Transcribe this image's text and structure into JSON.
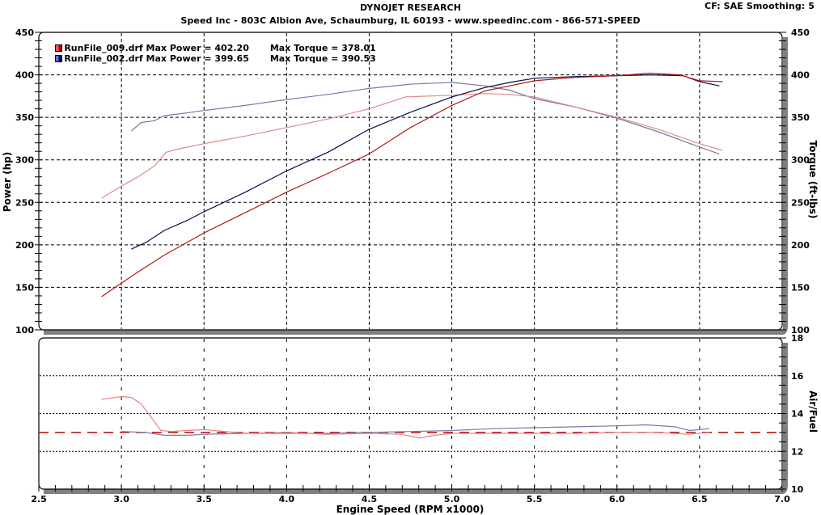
{
  "header": {
    "title": "DYNOJET RESEARCH",
    "subtitle": "Speed Inc - 803C Albion Ave, Schaumburg, IL 60193 - www.speedinc.com - 866-571-SPEED",
    "cf_info": "CF: SAE  Smoothing: 5"
  },
  "legend": [
    {
      "file": "RunFile_009.drf",
      "power_label": "Max Power =",
      "power_value": "402.20",
      "torque_label": "Max Torque =",
      "torque_value": "378.01",
      "color": "#e02020",
      "swatch_dark": "#b00000"
    },
    {
      "file": "RunFile_002.drf",
      "power_label": "Max Power =",
      "power_value": "399.65",
      "torque_label": "Max Torque =",
      "torque_value": "390.53",
      "color": "#3a3aa0",
      "swatch_dark": "#000060"
    }
  ],
  "axes": {
    "left_label": "Power (hp)",
    "right_label_top": "Torque (ft-lbs)",
    "right_label_bottom": "Air/Fuel",
    "x_label": "Engine Speed (RPM x1000)"
  },
  "colors": {
    "power_009": "#b01818",
    "torque_009": "#e08a8a",
    "power_002": "#0a0a50",
    "torque_002": "#7a7aa8",
    "afr_009": "#e88080",
    "afr_002": "#7a7aa8",
    "afr_target": "#c00000",
    "frame_shadow": "#808080"
  },
  "chart_data": [
    {
      "type": "line",
      "title": "Power / Torque vs Engine Speed",
      "xlabel": "Engine Speed (RPM x1000)",
      "ylabel": "Power (hp)",
      "ylabel_right": "Torque (ft-lbs)",
      "xlim": [
        2.5,
        7.0
      ],
      "ylim": [
        100,
        450
      ],
      "x_ticks": [
        "2.5",
        "3.0",
        "3.5",
        "4.0",
        "4.5",
        "5.0",
        "5.5",
        "6.0",
        "6.5",
        "7.0"
      ],
      "y_ticks": [
        "100",
        "150",
        "200",
        "250",
        "300",
        "350",
        "400",
        "450"
      ],
      "grid": true,
      "legend_position": "top-left inside",
      "series": [
        {
          "name": "RunFile_009.drf Power",
          "x": [
            2.88,
            3.0,
            3.1,
            3.26,
            3.5,
            3.75,
            4.0,
            4.25,
            4.5,
            4.75,
            5.0,
            5.2,
            5.35,
            5.5,
            5.75,
            6.0,
            6.2,
            6.38,
            6.5,
            6.64
          ],
          "y": [
            139,
            155,
            168,
            188,
            214,
            238,
            262,
            284,
            307,
            338,
            364,
            381,
            387,
            393,
            397,
            399,
            402,
            400,
            393,
            392
          ]
        },
        {
          "name": "RunFile_002.drf Power",
          "x": [
            3.06,
            3.15,
            3.26,
            3.4,
            3.5,
            3.75,
            4.0,
            4.25,
            4.5,
            4.75,
            5.0,
            5.2,
            5.35,
            5.5,
            5.75,
            6.0,
            6.2,
            6.4,
            6.5,
            6.62
          ],
          "y": [
            195,
            203,
            217,
            229,
            239,
            262,
            287,
            309,
            336,
            356,
            374,
            385,
            391,
            396,
            398,
            399,
            400,
            399,
            392,
            387
          ]
        },
        {
          "name": "RunFile_009.drf Torque",
          "x": [
            2.88,
            3.0,
            3.1,
            3.2,
            3.27,
            3.35,
            3.5,
            3.75,
            4.0,
            4.25,
            4.5,
            4.72,
            5.0,
            5.2,
            5.35,
            5.5,
            5.75,
            6.0,
            6.25,
            6.5,
            6.64
          ],
          "y": [
            255,
            269,
            280,
            293,
            309,
            313,
            319,
            328,
            338,
            348,
            360,
            374,
            376,
            378,
            377,
            374,
            362,
            350,
            336,
            319,
            311
          ]
        },
        {
          "name": "RunFile_002.drf Torque",
          "x": [
            3.06,
            3.12,
            3.2,
            3.26,
            3.35,
            3.5,
            3.75,
            4.0,
            4.25,
            4.5,
            4.75,
            5.0,
            5.2,
            5.35,
            5.5,
            5.75,
            6.0,
            6.25,
            6.5,
            6.62
          ],
          "y": [
            334,
            344,
            346,
            352,
            354,
            358,
            364,
            371,
            377,
            384,
            389,
            391,
            387,
            382,
            372,
            362,
            349,
            333,
            315,
            307
          ]
        }
      ]
    },
    {
      "type": "line",
      "title": "Air/Fuel vs Engine Speed",
      "xlabel": "Engine Speed (RPM x1000)",
      "ylabel_right": "Air/Fuel",
      "xlim": [
        2.5,
        7.0
      ],
      "ylim": [
        10,
        18
      ],
      "y_ticks": [
        "10",
        "12",
        "14",
        "16",
        "18"
      ],
      "grid": true,
      "reference_line": 13.0,
      "series": [
        {
          "name": "RunFile_009.drf AFR",
          "x": [
            2.88,
            3.0,
            3.06,
            3.12,
            3.18,
            3.24,
            3.3,
            3.5,
            3.75,
            4.0,
            4.25,
            4.5,
            4.7,
            4.8,
            4.9,
            5.0,
            5.25,
            5.5,
            5.75,
            6.0,
            6.25,
            6.43,
            6.56
          ],
          "y": [
            14.75,
            14.9,
            14.85,
            14.5,
            13.8,
            13.1,
            13.05,
            13.15,
            12.95,
            13.0,
            12.9,
            12.95,
            12.9,
            12.7,
            12.85,
            12.95,
            12.95,
            12.95,
            12.95,
            13.0,
            13.0,
            12.9,
            13.0
          ]
        },
        {
          "name": "RunFile_002.drf AFR",
          "x": [
            3.0,
            3.15,
            3.26,
            3.4,
            3.5,
            3.75,
            4.0,
            4.25,
            4.5,
            4.75,
            5.0,
            5.25,
            5.5,
            5.75,
            6.0,
            6.18,
            6.35,
            6.44,
            6.56
          ],
          "y": [
            13.05,
            13.0,
            12.85,
            12.85,
            12.9,
            12.95,
            12.95,
            12.95,
            13.0,
            13.05,
            13.1,
            13.2,
            13.25,
            13.3,
            13.35,
            13.4,
            13.3,
            13.1,
            13.2
          ]
        }
      ]
    }
  ]
}
